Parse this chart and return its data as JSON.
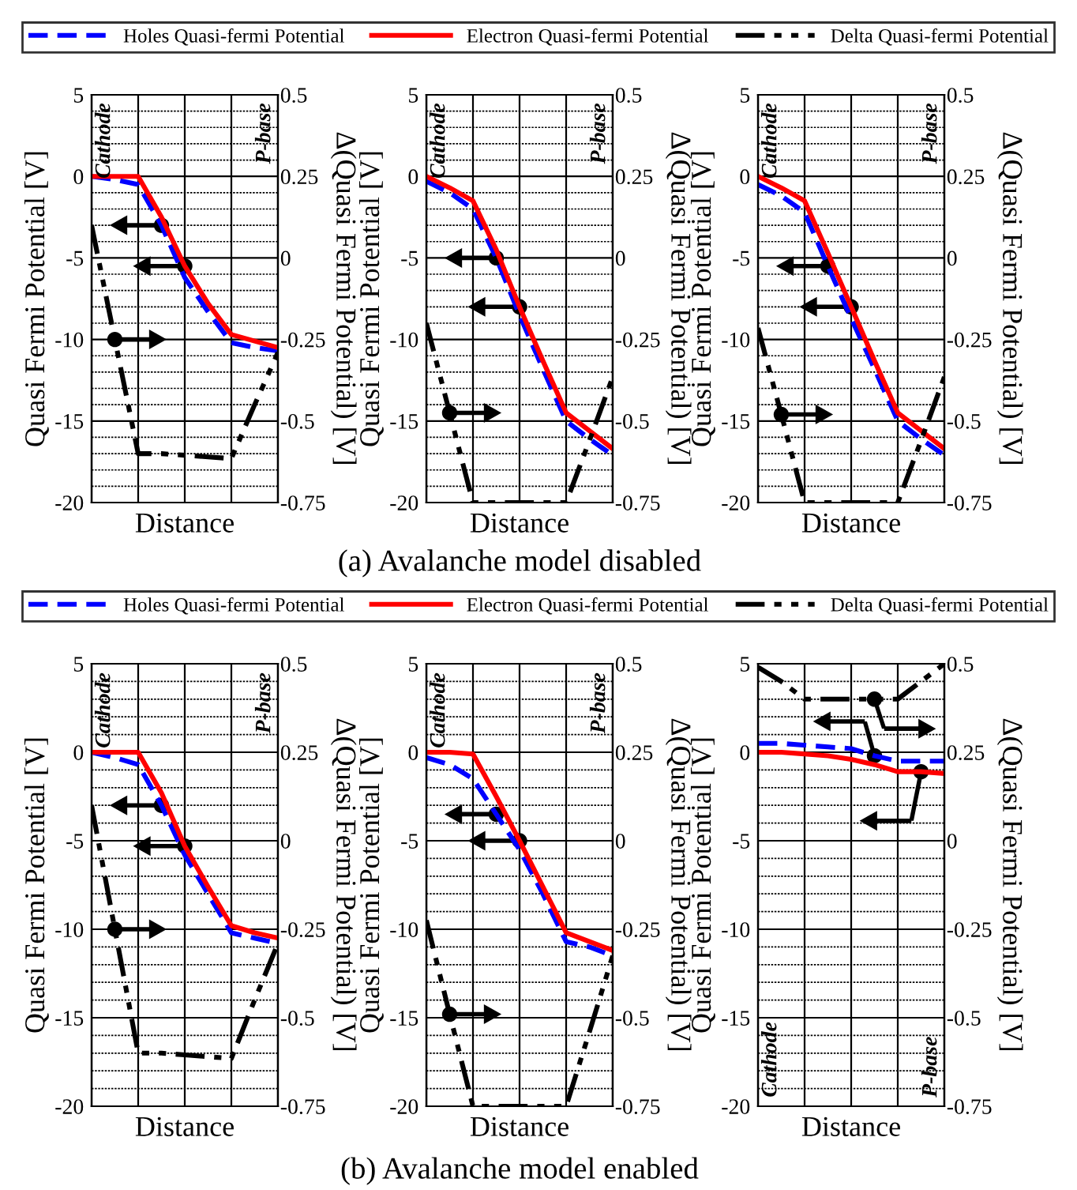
{
  "chart_data": [
    {
      "type": "line",
      "categories": [
        null,
        null,
        null,
        null,
        null,
        null,
        null,
        null,
        null
      ],
      "xlabel": "Distance",
      "ylabel": "Quasi Fermi Potential [V]",
      "y2label": "Δ(Quasi Fermi Potential) [V]",
      "ylim": [
        -20,
        5
      ],
      "yticks": [
        5,
        {
          "value": 4,
          "label": null
        },
        {
          "value": 3,
          "label": null
        },
        {
          "value": 2,
          "label": null
        },
        {
          "value": 1,
          "label": null
        },
        0,
        {
          "value": -1,
          "label": null
        },
        {
          "value": -2,
          "label": null
        },
        {
          "value": -3,
          "label": null
        },
        {
          "value": -4,
          "label": null
        },
        -5,
        {
          "value": -6,
          "label": null
        },
        {
          "value": -7,
          "label": null
        },
        {
          "value": -8,
          "label": null
        },
        {
          "value": -9,
          "label": null
        },
        -10,
        {
          "value": -11,
          "label": null
        },
        {
          "value": -12,
          "label": null
        },
        {
          "value": -13,
          "label": null
        },
        {
          "value": -14,
          "label": null
        },
        -15,
        {
          "value": -16,
          "label": null
        },
        {
          "value": -17,
          "label": null
        },
        {
          "value": -18,
          "label": null
        },
        {
          "value": -19,
          "label": null
        },
        -20
      ],
      "y2lim": [
        -0.75,
        0.5
      ],
      "y2ticks": [
        0.5,
        0.25,
        0,
        -0.25,
        -0.5,
        -0.75
      ],
      "grid": true,
      "annotations": [
        "Cathode",
        "P-base"
      ],
      "series": [
        {
          "color": "#0000ff",
          "line_style": "dashed",
          "values": [
            0,
            -0.2,
            -0.5,
            -3.0,
            -6.2,
            -8.3,
            -10.2,
            -10.5,
            -10.7
          ]
        },
        {
          "color": "#ff0000",
          "line_style": "solid",
          "values": [
            0,
            0,
            0,
            -2.5,
            -5.5,
            -7.8,
            -9.7,
            -10.1,
            -10.5
          ]
        },
        {
          "color": "#000000",
          "line_style": "dotted",
          "axis": "y2",
          "values": [
            0.1,
            -0.25,
            -0.6,
            -0.6,
            -0.605,
            -0.61,
            -0.615,
            -0.45,
            -0.29
          ]
        }
      ]
    },
    {
      "type": "line",
      "categories": [
        null,
        null,
        null,
        null,
        null,
        null,
        null,
        null,
        null
      ],
      "xlabel": "Distance",
      "ylabel": "Quasi Fermi Potential [V]",
      "y2label": "Δ(Quasi Fermi Potential) [V]",
      "ylim": [
        -20,
        5
      ],
      "yticks": [
        5,
        {
          "value": 4,
          "label": null
        },
        {
          "value": 3,
          "label": null
        },
        {
          "value": 2,
          "label": null
        },
        {
          "value": 1,
          "label": null
        },
        0,
        {
          "value": -1,
          "label": null
        },
        {
          "value": -2,
          "label": null
        },
        {
          "value": -3,
          "label": null
        },
        {
          "value": -4,
          "label": null
        },
        -5,
        {
          "value": -6,
          "label": null
        },
        {
          "value": -7,
          "label": null
        },
        {
          "value": -8,
          "label": null
        },
        {
          "value": -9,
          "label": null
        },
        -10,
        {
          "value": -11,
          "label": null
        },
        {
          "value": -12,
          "label": null
        },
        {
          "value": -13,
          "label": null
        },
        {
          "value": -14,
          "label": null
        },
        -15,
        {
          "value": -16,
          "label": null
        },
        {
          "value": -17,
          "label": null
        },
        {
          "value": -18,
          "label": null
        },
        {
          "value": -19,
          "label": null
        },
        -20
      ],
      "y2lim": [
        -0.75,
        0.5
      ],
      "y2ticks": [
        0.5,
        0.25,
        0,
        -0.25,
        -0.5,
        -0.75
      ],
      "grid": true,
      "legend": "top",
      "annotations": [
        "Cathode",
        "P-base",
        "(a) Avalanche model disabled"
      ],
      "series": [
        {
          "name": "Holes Quasi-fermi Potential",
          "color": "#0000ff",
          "line_style": "dashed",
          "values": [
            -0.3,
            -1,
            -2,
            -5,
            -8.5,
            -11.8,
            -15,
            -16.1,
            -17.1
          ]
        },
        {
          "name": "Electron Quasi-fermi Potential",
          "color": "#ff0000",
          "line_style": "solid",
          "values": [
            0,
            -0.7,
            -1.5,
            -4.5,
            -8,
            -11.3,
            -14.5,
            -15.6,
            -16.7
          ]
        },
        {
          "name": "Delta Quasi-fermi Potential",
          "color": "#000000",
          "line_style": "dotted",
          "axis": "y2",
          "values": [
            -0.2,
            -0.475,
            -0.75,
            -0.75,
            -0.75,
            -0.75,
            -0.75,
            -0.56,
            -0.365
          ]
        }
      ]
    },
    {
      "type": "line",
      "categories": [
        null,
        null,
        null,
        null,
        null,
        null,
        null,
        null,
        null
      ],
      "xlabel": "Distance",
      "ylabel": "Quasi Fermi Potential [V]",
      "y2label": "Δ(Quasi Fermi Potential) [V]",
      "ylim": [
        -20,
        5
      ],
      "yticks": [
        5,
        {
          "value": 4,
          "label": null
        },
        {
          "value": 3,
          "label": null
        },
        {
          "value": 2,
          "label": null
        },
        {
          "value": 1,
          "label": null
        },
        0,
        {
          "value": -1,
          "label": null
        },
        {
          "value": -2,
          "label": null
        },
        {
          "value": -3,
          "label": null
        },
        {
          "value": -4,
          "label": null
        },
        -5,
        {
          "value": -6,
          "label": null
        },
        {
          "value": -7,
          "label": null
        },
        {
          "value": -8,
          "label": null
        },
        {
          "value": -9,
          "label": null
        },
        -10,
        {
          "value": -11,
          "label": null
        },
        {
          "value": -12,
          "label": null
        },
        {
          "value": -13,
          "label": null
        },
        {
          "value": -14,
          "label": null
        },
        -15,
        {
          "value": -16,
          "label": null
        },
        {
          "value": -17,
          "label": null
        },
        {
          "value": -18,
          "label": null
        },
        {
          "value": -19,
          "label": null
        },
        -20
      ],
      "y2lim": [
        -0.75,
        0.5
      ],
      "y2ticks": [
        0.5,
        0.25,
        0,
        -0.25,
        -0.5,
        -0.75
      ],
      "grid": true,
      "annotations": [
        "Cathode",
        "P-base"
      ],
      "series": [
        {
          "color": "#0000ff",
          "line_style": "dashed",
          "values": [
            -0.5,
            -1.2,
            -2.2,
            -5.5,
            -8.7,
            -11.8,
            -15,
            -16.1,
            -17.1
          ]
        },
        {
          "color": "#ff0000",
          "line_style": "solid",
          "values": [
            0,
            -0.7,
            -1.5,
            -4.7,
            -8,
            -11.3,
            -14.5,
            -15.6,
            -16.7
          ]
        },
        {
          "color": "#000000",
          "line_style": "dotted",
          "axis": "y2",
          "values": [
            -0.215,
            -0.48,
            -0.75,
            -0.75,
            -0.75,
            -0.75,
            -0.75,
            -0.56,
            -0.365
          ]
        }
      ]
    },
    {
      "type": "line",
      "categories": [
        null,
        null,
        null,
        null,
        null,
        null,
        null,
        null,
        null
      ],
      "xlabel": "Distance",
      "ylabel": "Quasi Fermi Potential [V]",
      "y2label": "Δ(Quasi Fermi Potential) [V]",
      "ylim": [
        -20,
        5
      ],
      "yticks": [
        5,
        {
          "value": 4,
          "label": null
        },
        {
          "value": 3,
          "label": null
        },
        {
          "value": 2,
          "label": null
        },
        {
          "value": 1,
          "label": null
        },
        0,
        {
          "value": -1,
          "label": null
        },
        {
          "value": -2,
          "label": null
        },
        {
          "value": -3,
          "label": null
        },
        {
          "value": -4,
          "label": null
        },
        -5,
        {
          "value": -6,
          "label": null
        },
        {
          "value": -7,
          "label": null
        },
        {
          "value": -8,
          "label": null
        },
        {
          "value": -9,
          "label": null
        },
        -10,
        {
          "value": -11,
          "label": null
        },
        {
          "value": -12,
          "label": null
        },
        {
          "value": -13,
          "label": null
        },
        {
          "value": -14,
          "label": null
        },
        -15,
        {
          "value": -16,
          "label": null
        },
        {
          "value": -17,
          "label": null
        },
        {
          "value": -18,
          "label": null
        },
        {
          "value": -19,
          "label": null
        },
        -20
      ],
      "y2lim": [
        -0.75,
        0.5
      ],
      "y2ticks": [
        0.5,
        0.25,
        0,
        -0.25,
        -0.5,
        -0.75
      ],
      "grid": true,
      "annotations": [
        "Cathode",
        "P-base"
      ],
      "series": [
        {
          "color": "#0000ff",
          "line_style": "dashed",
          "values": [
            0,
            -0.3,
            -0.7,
            -3,
            -5.8,
            -8,
            -10.2,
            -10.5,
            -10.8
          ]
        },
        {
          "color": "#ff0000",
          "line_style": "solid",
          "values": [
            0,
            0,
            0,
            -2.3,
            -5.3,
            -7.6,
            -9.8,
            -10.2,
            -10.5
          ]
        },
        {
          "color": "#000000",
          "line_style": "dotted",
          "axis": "y2",
          "values": [
            0.1,
            -0.25,
            -0.6,
            -0.6,
            -0.605,
            -0.61,
            -0.615,
            -0.45,
            -0.29
          ]
        }
      ]
    },
    {
      "type": "line",
      "categories": [
        null,
        null,
        null,
        null,
        null,
        null,
        null,
        null,
        null
      ],
      "xlabel": "Distance",
      "ylabel": "Quasi Fermi Potential [V]",
      "y2label": "Δ(Quasi Fermi Potential) [V]",
      "ylim": [
        -20,
        5
      ],
      "yticks": [
        5,
        {
          "value": 4,
          "label": null
        },
        {
          "value": 3,
          "label": null
        },
        {
          "value": 2,
          "label": null
        },
        {
          "value": 1,
          "label": null
        },
        0,
        {
          "value": -1,
          "label": null
        },
        {
          "value": -2,
          "label": null
        },
        {
          "value": -3,
          "label": null
        },
        {
          "value": -4,
          "label": null
        },
        -5,
        {
          "value": -6,
          "label": null
        },
        {
          "value": -7,
          "label": null
        },
        {
          "value": -8,
          "label": null
        },
        {
          "value": -9,
          "label": null
        },
        -10,
        {
          "value": -11,
          "label": null
        },
        {
          "value": -12,
          "label": null
        },
        {
          "value": -13,
          "label": null
        },
        {
          "value": -14,
          "label": null
        },
        -15,
        {
          "value": -16,
          "label": null
        },
        {
          "value": -17,
          "label": null
        },
        {
          "value": -18,
          "label": null
        },
        {
          "value": -19,
          "label": null
        },
        -20
      ],
      "y2lim": [
        -0.75,
        0.5
      ],
      "y2ticks": [
        0.5,
        0.25,
        0,
        -0.25,
        -0.5,
        -0.75
      ],
      "grid": true,
      "legend": "top",
      "annotations": [
        "Cathode",
        "P-base",
        "(b) Avalanche model enabled"
      ],
      "series": [
        {
          "name": "Holes Quasi-fermi Potential",
          "color": "#0000ff",
          "line_style": "dashed",
          "values": [
            -0.3,
            -0.7,
            -1.5,
            -3.5,
            -5.5,
            -8,
            -10.7,
            -11,
            -11.5
          ]
        },
        {
          "name": "Electron Quasi-fermi Potential",
          "color": "#ff0000",
          "line_style": "solid",
          "values": [
            0,
            0,
            -0.1,
            -2.5,
            -5,
            -7.6,
            -10.2,
            -10.7,
            -11.2
          ]
        },
        {
          "name": "Delta Quasi-fermi Potential",
          "color": "#000000",
          "line_style": "dotted",
          "axis": "y2",
          "values": [
            -0.225,
            -0.49,
            -0.75,
            -0.75,
            -0.75,
            -0.75,
            -0.75,
            -0.54,
            -0.325
          ]
        }
      ]
    },
    {
      "type": "line",
      "categories": [
        null,
        null,
        null,
        null,
        null,
        null,
        null,
        null,
        null
      ],
      "xlabel": "Distance",
      "ylabel": "Quasi Fermi Potential [V]",
      "y2label": "Δ(Quasi Fermi Potential) [V]",
      "ylim": [
        -20,
        5
      ],
      "yticks": [
        5,
        {
          "value": 4,
          "label": null
        },
        {
          "value": 3,
          "label": null
        },
        {
          "value": 2,
          "label": null
        },
        {
          "value": 1,
          "label": null
        },
        0,
        {
          "value": -1,
          "label": null
        },
        {
          "value": -2,
          "label": null
        },
        {
          "value": -3,
          "label": null
        },
        {
          "value": -4,
          "label": null
        },
        -5,
        {
          "value": -6,
          "label": null
        },
        {
          "value": -7,
          "label": null
        },
        {
          "value": -8,
          "label": null
        },
        {
          "value": -9,
          "label": null
        },
        -10,
        {
          "value": -11,
          "label": null
        },
        {
          "value": -12,
          "label": null
        },
        {
          "value": -13,
          "label": null
        },
        {
          "value": -14,
          "label": null
        },
        -15,
        {
          "value": -16,
          "label": null
        },
        {
          "value": -17,
          "label": null
        },
        {
          "value": -18,
          "label": null
        },
        {
          "value": -19,
          "label": null
        },
        -20
      ],
      "y2lim": [
        -0.75,
        0.5
      ],
      "y2ticks": [
        0.5,
        0.25,
        0,
        -0.25,
        -0.5,
        -0.75
      ],
      "grid": true,
      "annotations": [
        "Cathode",
        "P-base"
      ],
      "series": [
        {
          "color": "#0000ff",
          "line_style": "dashed",
          "values": [
            0.5,
            0.5,
            0.4,
            0.3,
            0.2,
            -0.2,
            -0.5,
            -0.5,
            -0.5
          ]
        },
        {
          "color": "#ff0000",
          "line_style": "solid",
          "values": [
            0,
            0,
            -0.1,
            -0.2,
            -0.4,
            -0.7,
            -1.1,
            -1.1,
            -1.2
          ]
        },
        {
          "color": "#000000",
          "line_style": "dotted",
          "axis": "y2",
          "values": [
            0.49,
            0.45,
            0.4,
            0.4,
            0.4,
            0.4,
            0.4,
            0.45,
            0.5
          ]
        }
      ]
    }
  ]
}
